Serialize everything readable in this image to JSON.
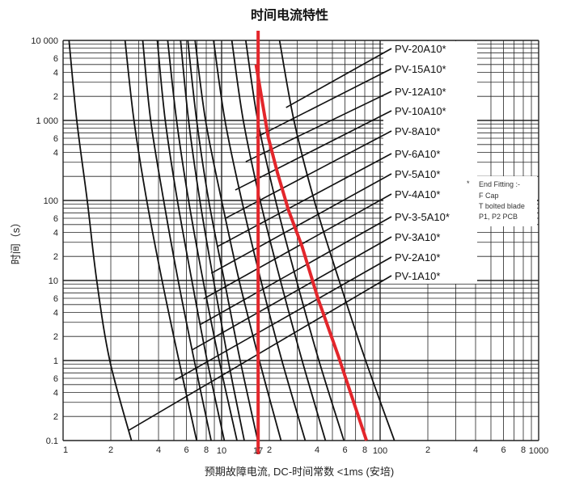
{
  "chart_data": {
    "type": "line",
    "title": "时间电流特性",
    "xlabel": "预期故障电流, DC-时间常数 <1ms (安培)",
    "ylabel": "时间（s）",
    "xscale": "log",
    "yscale": "log",
    "xlim": [
      1,
      1000
    ],
    "ylim": [
      0.1,
      10000
    ],
    "grid": true,
    "x_tick_labels": [
      {
        "v": 1,
        "t": "1"
      },
      {
        "v": 2,
        "t": "2"
      },
      {
        "v": 4,
        "t": "4"
      },
      {
        "v": 6,
        "t": "6"
      },
      {
        "v": 8,
        "t": "8"
      },
      {
        "v": 10,
        "t": "10"
      },
      {
        "v": 17,
        "t": "17"
      },
      {
        "v": 20,
        "t": "2"
      },
      {
        "v": 40,
        "t": "4"
      },
      {
        "v": 60,
        "t": "6"
      },
      {
        "v": 80,
        "t": "8"
      },
      {
        "v": 100,
        "t": "100"
      },
      {
        "v": 200,
        "t": "2"
      },
      {
        "v": 400,
        "t": "4"
      },
      {
        "v": 600,
        "t": "6"
      },
      {
        "v": 800,
        "t": "8"
      },
      {
        "v": 1000,
        "t": "1000"
      }
    ],
    "y_tick_labels": [
      {
        "v": 10000,
        "t": "10 000"
      },
      {
        "v": 6000,
        "t": "6"
      },
      {
        "v": 4000,
        "t": "4"
      },
      {
        "v": 2000,
        "t": "2"
      },
      {
        "v": 1000,
        "t": "1 000"
      },
      {
        "v": 600,
        "t": "6"
      },
      {
        "v": 400,
        "t": "4"
      },
      {
        "v": 100,
        "t": "100"
      },
      {
        "v": 60,
        "t": "6"
      },
      {
        "v": 40,
        "t": "4"
      },
      {
        "v": 20,
        "t": "2"
      },
      {
        "v": 10,
        "t": "10"
      },
      {
        "v": 6,
        "t": "6"
      },
      {
        "v": 4,
        "t": "4"
      },
      {
        "v": 2,
        "t": "2"
      },
      {
        "v": 1,
        "t": "1"
      },
      {
        "v": 0.6,
        "t": "6"
      },
      {
        "v": 0.4,
        "t": "4"
      },
      {
        "v": 0.2,
        "t": "2"
      },
      {
        "v": 0.1,
        "t": "0.1"
      }
    ],
    "times_s": [
      10000,
      1000,
      100,
      10,
      1,
      0.1
    ],
    "series": [
      {
        "name": "PV-20A10*",
        "currents_a": [
          23.2,
          28.6,
          38.4,
          55.1,
          81.0,
          123
        ],
        "leader_end": [
          25.5,
          1450
        ]
      },
      {
        "name": "PV-15A10*",
        "currents_a": [
          14.2,
          16.9,
          21.9,
          29.7,
          41.1,
          59.1
        ],
        "leader_end": [
          16.5,
          614
        ]
      },
      {
        "name": "PV-12A10*",
        "currents_a": [
          11.6,
          13.7,
          17.5,
          23.5,
          32.2,
          45.2
        ],
        "leader_end": [
          14.2,
          305
        ]
      },
      {
        "name": "PV-10A10*",
        "currents_a": [
          8.9,
          10.5,
          13.4,
          17.7,
          24.0,
          33.7
        ],
        "leader_end": [
          12.2,
          135
        ]
      },
      {
        "name": "PV-8A10*",
        "currents_a": [
          6.8,
          7.92,
          10.0,
          12.9,
          17.3,
          23.7
        ],
        "leader_end": [
          10.6,
          60
        ]
      },
      {
        "name": "PV-6A10*",
        "currents_a": [
          6.12,
          6.96,
          8.29,
          10.4,
          13.1,
          16.9
        ],
        "leader_end": [
          9.4,
          26.5
        ]
      },
      {
        "name": "PV-5A10*",
        "currents_a": [
          5.51,
          6.19,
          7.29,
          8.9,
          11.0,
          13.9
        ],
        "leader_end": [
          8.6,
          12.3
        ]
      },
      {
        "name": "PV-4A10*",
        "currents_a": [
          4.57,
          5.2,
          6.19,
          7.64,
          9.65,
          12.5
        ],
        "leader_end": [
          7.7,
          5.9
        ]
      },
      {
        "name": "PV-3-5A10*",
        "currents_a": [
          3.93,
          4.41,
          5.26,
          6.49,
          8.1,
          10.4
        ],
        "leader_end": [
          7.3,
          2.8
        ]
      },
      {
        "name": "PV-3A10*",
        "currents_a": [
          3.18,
          3.57,
          4.31,
          5.32,
          6.72,
          8.59
        ],
        "leader_end": [
          6.49,
          1.35
        ]
      },
      {
        "name": "PV-2A10*",
        "currents_a": [
          2.46,
          2.8,
          3.37,
          4.21,
          5.38,
          6.96
        ],
        "leader_end": [
          5.08,
          0.57
        ]
      },
      {
        "name": "PV-1A10*",
        "currents_a": [
          1.09,
          1.22,
          1.42,
          1.63,
          1.97,
          2.7
        ],
        "leader_end": [
          2.61,
          0.135
        ]
      }
    ],
    "highlight": {
      "color": "#e3262b",
      "vertical_line_current_a": 17,
      "curve": [
        [
          16.5,
          4980
        ],
        [
          18.2,
          1556
        ],
        [
          19.7,
          614
        ],
        [
          22.6,
          215
        ],
        [
          26.4,
          76
        ],
        [
          32.2,
          26.5
        ],
        [
          40.6,
          5.9
        ],
        [
          54.4,
          1.15
        ],
        [
          82,
          0.1
        ]
      ]
    },
    "note": {
      "marker": "*",
      "lines": [
        "End Fitting :-",
        "F Cap",
        "T bolted blade",
        "P1, P2 PCB"
      ]
    }
  }
}
